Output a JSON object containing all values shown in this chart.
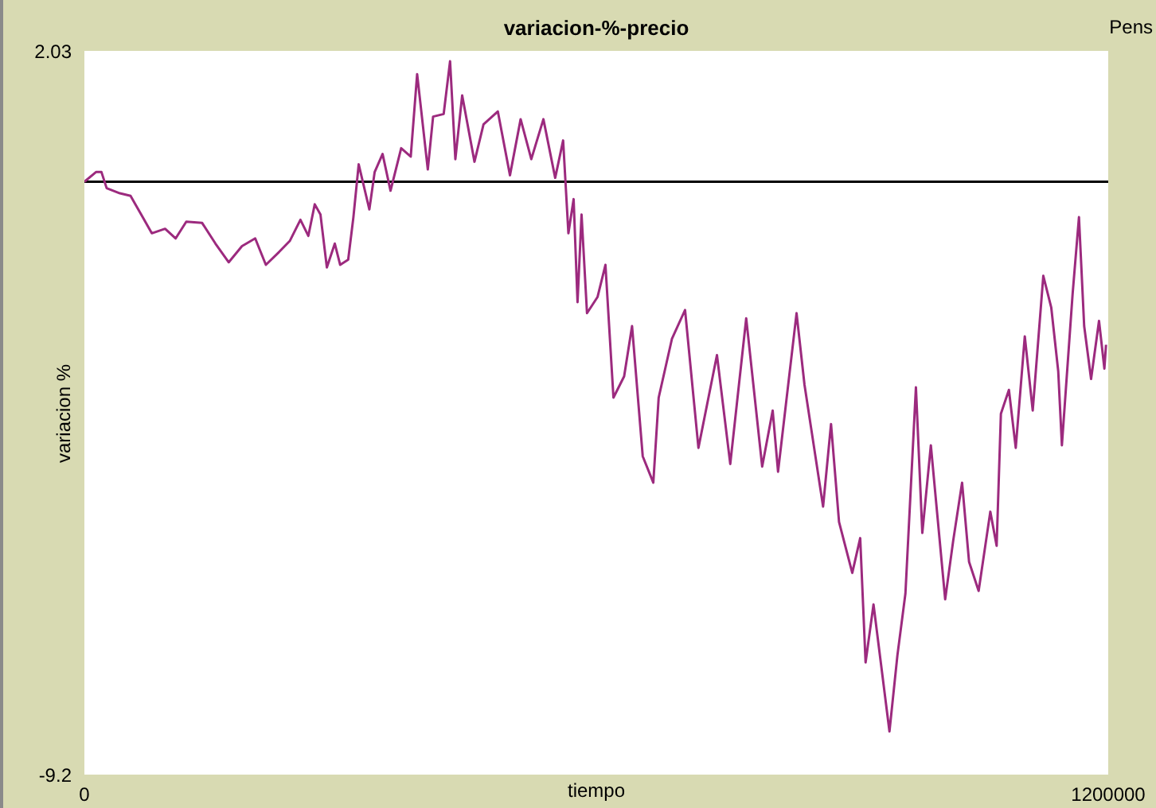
{
  "chart_data": {
    "type": "line",
    "title": "variacion-%-precio",
    "xlabel": "tiempo",
    "ylabel": "variacion %",
    "annotations": [
      "Pens"
    ],
    "x": [
      0,
      13600,
      20000,
      26100,
      41600,
      54100,
      66600,
      79000,
      94600,
      107000,
      119400,
      138000,
      153600,
      169200,
      184700,
      200200,
      212700,
      228200,
      240700,
      253200,
      262500,
      270000,
      276700,
      284200,
      293500,
      299800,
      309200,
      315300,
      321500,
      334000,
      340200,
      349500,
      358800,
      371300,
      382500,
      390000,
      402500,
      408700,
      421100,
      428600,
      434800,
      442800,
      457200,
      467800,
      484600,
      498800,
      511300,
      523800,
      538000,
      551800,
      561100,
      567300,
      573400,
      578000,
      582700,
      589100,
      601400,
      610700,
      620100,
      632600,
      641900,
      654400,
      666800,
      673100,
      688600,
      704000,
      719700,
      741400,
      757000,
      775700,
      794400,
      806700,
      813000,
      834700,
      844000,
      865800,
      875100,
      884500,
      900000,
      909300,
      915600,
      924900,
      943600,
      952900,
      962300,
      974600,
      982100,
      992100,
      999600,
      1008900,
      1018300,
      1028700,
      1036900,
      1048100,
      1061800,
      1069200,
      1074200,
      1083600,
      1091600,
      1102200,
      1111500,
      1123900,
      1133200,
      1141400,
      1145700,
      1158200,
      1165700,
      1171800,
      1179900,
      1189200,
      1195500,
      1197400
    ],
    "series": [
      {
        "color": "#9c2a7e",
        "values": [
          0,
          0.15,
          0.15,
          -0.1,
          -0.18,
          -0.22,
          -0.51,
          -0.8,
          -0.73,
          -0.88,
          -0.62,
          -0.64,
          -0.96,
          -1.25,
          -1.0,
          -0.88,
          -1.29,
          -1.09,
          -0.92,
          -0.59,
          -0.84,
          -0.35,
          -0.51,
          -1.33,
          -0.96,
          -1.29,
          -1.21,
          -0.55,
          0.27,
          -0.43,
          0.15,
          0.43,
          -0.14,
          0.52,
          0.39,
          1.67,
          0.19,
          1.01,
          1.05,
          1.87,
          0.35,
          1.34,
          0.31,
          0.89,
          1.09,
          0.1,
          0.97,
          0.35,
          0.97,
          0.06,
          0.64,
          -0.8,
          -0.27,
          -1.87,
          -0.51,
          -2.04,
          -1.79,
          -1.29,
          -3.35,
          -3.02,
          -2.24,
          -4.26,
          -4.67,
          -3.35,
          -2.44,
          -1.99,
          -4.13,
          -2.69,
          -4.38,
          -2.12,
          -4.42,
          -3.55,
          -4.5,
          -2.04,
          -3.15,
          -5.04,
          -3.76,
          -5.28,
          -6.07,
          -5.53,
          -7.46,
          -6.56,
          -8.53,
          -7.35,
          -6.39,
          -3.19,
          -5.45,
          -4.09,
          -5.16,
          -6.48,
          -5.57,
          -4.67,
          -5.9,
          -6.35,
          -5.12,
          -5.65,
          -3.6,
          -3.23,
          -4.13,
          -2.4,
          -3.55,
          -1.46,
          -1.95,
          -2.94,
          -4.09,
          -1.75,
          -0.55,
          -2.24,
          -3.06,
          -2.16,
          -2.9,
          -2.53
        ]
      }
    ],
    "xlim": [
      0,
      1200000
    ],
    "xticks": [
      0,
      1200000
    ],
    "ylim": [
      -9.2,
      2.03
    ],
    "yticks": [
      -9.2,
      2.03
    ],
    "ref_lines": [
      {
        "axis": "y",
        "value": 0,
        "color": "#000000"
      }
    ],
    "grid": false,
    "legend": false,
    "marker": "none",
    "line_style": "solid"
  }
}
